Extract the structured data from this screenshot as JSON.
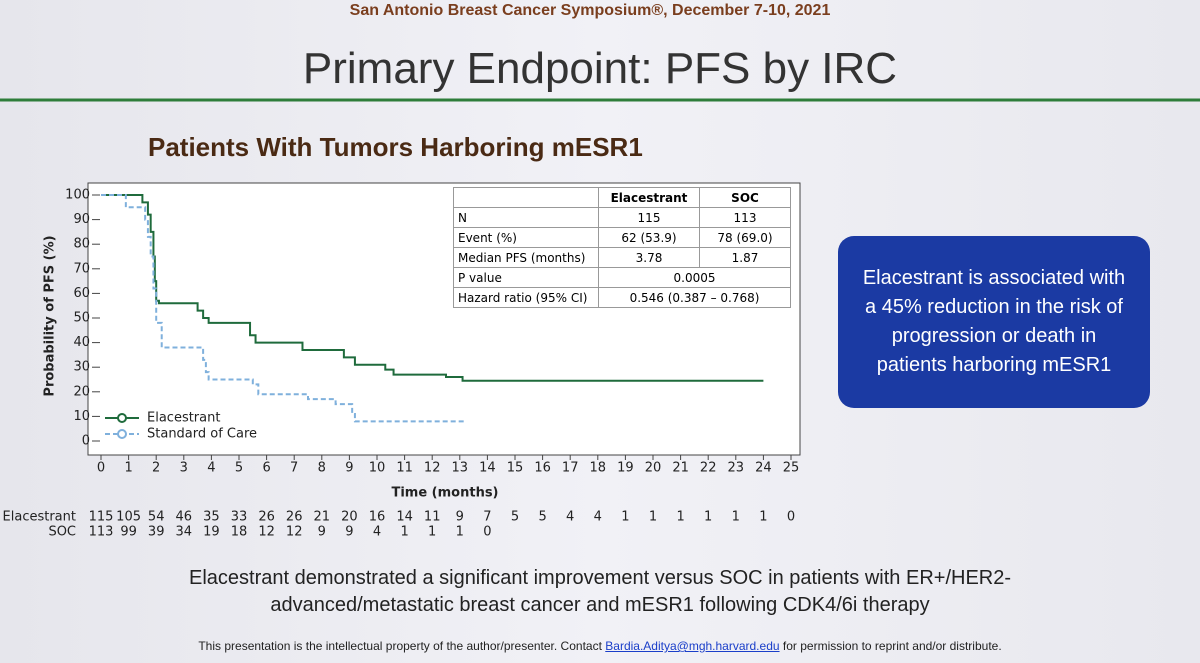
{
  "slide": {
    "header": "San Antonio Breast Cancer Symposium®, December 7-10, 2021",
    "title": "Primary Endpoint: PFS by IRC",
    "callout": "Elacestrant is associated with a 45% reduction in the risk of progression or death in patients harboring mESR1",
    "conclusion": "Elacestrant demonstrated a significant improvement versus SOC in patients with ER+/HER2- advanced/metastatic breast cancer and mESR1 following CDK4/6i therapy",
    "footer": {
      "before": "This presentation is the intellectual property of the author/presenter. Contact",
      "email": "Bardia.Aditya@mgh.harvard.edu",
      "after": "for permission to reprint and/or distribute."
    }
  },
  "chart_data": {
    "type": "step",
    "title": "Patients With Tumors Harboring mESR1",
    "x_label": "Time (months)",
    "y_label": "Probability of PFS (%)",
    "xlim": [
      0,
      25
    ],
    "xticks": [
      0,
      1,
      2,
      3,
      4,
      5,
      6,
      7,
      8,
      9,
      10,
      11,
      12,
      13,
      14,
      15,
      16,
      17,
      18,
      19,
      20,
      21,
      22,
      23,
      24,
      25
    ],
    "ylim": [
      0,
      100
    ],
    "yticks": [
      0,
      10,
      20,
      30,
      40,
      50,
      60,
      70,
      80,
      90,
      100
    ],
    "legend": "lower left",
    "series": [
      {
        "name": "Elacestrant",
        "color": "#1f6b3c",
        "dashed": false,
        "x": [
          0,
          1.5,
          1.7,
          1.8,
          1.9,
          1.95,
          2.0,
          2.1,
          3.5,
          3.7,
          3.9,
          5.4,
          5.6,
          7.3,
          8.8,
          9.2,
          10.3,
          10.6,
          12.5,
          13.1,
          24
        ],
        "values": [
          100,
          97,
          92,
          85,
          75,
          65,
          57,
          56,
          53,
          50,
          48,
          43,
          40,
          37,
          34,
          31,
          29,
          27,
          26,
          24.5,
          24.5
        ]
      },
      {
        "name": "Standard of Care",
        "color": "#7fb0dc",
        "dashed": true,
        "x": [
          0,
          0.9,
          1.6,
          1.7,
          1.8,
          1.9,
          2.0,
          2.2,
          3.7,
          3.8,
          3.9,
          5.5,
          5.7,
          7.5,
          8.5,
          9.1,
          9.2,
          13.2
        ],
        "values": [
          100,
          95,
          90,
          83,
          75,
          62,
          48,
          38,
          33,
          28,
          25,
          23,
          19,
          17,
          15,
          11,
          8,
          8
        ]
      }
    ],
    "table": {
      "columns": [
        "Elacestrant",
        "SOC"
      ],
      "rows": [
        {
          "label": "N",
          "cells": [
            "115",
            "113"
          ]
        },
        {
          "label": "Event (%)",
          "cells": [
            "62 (53.9)",
            "78 (69.0)"
          ]
        },
        {
          "label": "Median PFS (months)",
          "cells": [
            "3.78",
            "1.87"
          ]
        },
        {
          "label": "P value",
          "cells": [
            "0.0005"
          ]
        },
        {
          "label": "Hazard ratio (95% CI)",
          "cells": [
            "0.546 (0.387 – 0.768)"
          ]
        }
      ]
    },
    "at_risk": [
      {
        "name": "Elacestrant",
        "values": [
          115,
          105,
          54,
          46,
          35,
          33,
          26,
          26,
          21,
          20,
          16,
          14,
          11,
          9,
          7,
          5,
          5,
          4,
          4,
          1,
          1,
          1,
          1,
          1,
          1,
          0
        ]
      },
      {
        "name": "SOC",
        "values": [
          113,
          99,
          39,
          34,
          19,
          18,
          12,
          12,
          9,
          9,
          4,
          1,
          1,
          1,
          0,
          null,
          null,
          null,
          null,
          null,
          null,
          null,
          null,
          null,
          null,
          null
        ]
      }
    ]
  }
}
